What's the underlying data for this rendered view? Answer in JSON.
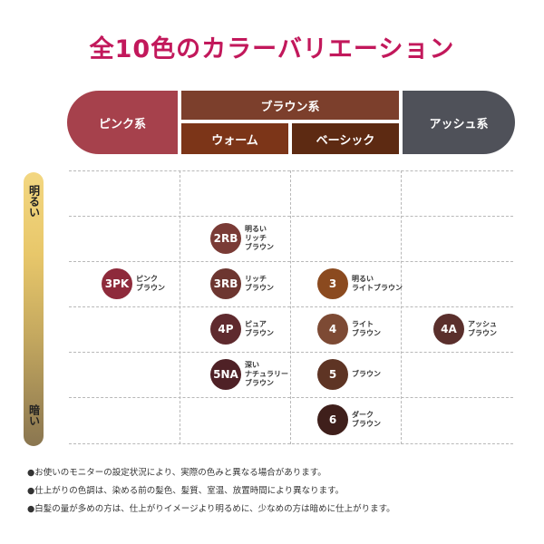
{
  "title": "全10色のカラーバリエーション",
  "headers": {
    "pink": "ピンク系",
    "brown": "ブラウン系",
    "warm": "ウォーム",
    "beige": "ベーシック",
    "ash": "アッシュ系"
  },
  "scale": {
    "light": "明るい",
    "dark": "暗い"
  },
  "colors": {
    "pink_header": "#a6414c",
    "brown_header": "#7c3f2c",
    "warm_header": "#7c3518",
    "basic_header": "#5d2a12",
    "ash_header": "#4f5159"
  },
  "shades": [
    {
      "code": "2RB",
      "lines": [
        "明るい",
        "リッチ",
        "ブラウン"
      ],
      "color": "#7a3b36",
      "column": "warm",
      "level": 2
    },
    {
      "code": "3PK",
      "lines": [
        "ピンク",
        "ブラウン"
      ],
      "color": "#8e2a3b",
      "column": "pink",
      "level": 3
    },
    {
      "code": "3RB",
      "lines": [
        "リッチ",
        "ブラウン"
      ],
      "color": "#6d3630",
      "column": "warm",
      "level": 3
    },
    {
      "code": "3",
      "lines": [
        "明るい",
        "ライトブラウン"
      ],
      "color": "#8b4a1f",
      "column": "basic",
      "level": 3
    },
    {
      "code": "4P",
      "lines": [
        "ピュア",
        "ブラウン"
      ],
      "color": "#5f2a2e",
      "column": "warm",
      "level": 4
    },
    {
      "code": "4",
      "lines": [
        "ライト",
        "ブラウン"
      ],
      "color": "#7d4a34",
      "column": "basic",
      "level": 4
    },
    {
      "code": "4A",
      "lines": [
        "アッシュ",
        "ブラウン"
      ],
      "color": "#5a2f2c",
      "column": "ash",
      "level": 4
    },
    {
      "code": "5NA",
      "lines": [
        "深い",
        "ナチュラリー",
        "ブラウン"
      ],
      "color": "#4f2126",
      "column": "warm",
      "level": 5
    },
    {
      "code": "5",
      "lines": [
        "ブラウン"
      ],
      "color": "#5e3424",
      "column": "basic",
      "level": 5
    },
    {
      "code": "6",
      "lines": [
        "ダーク",
        "ブラウン"
      ],
      "color": "#3f1f1b",
      "column": "basic",
      "level": 6
    }
  ],
  "notes": [
    "●お使いのモニターの設定状況により、実際の色みと異なる場合があります。",
    "●仕上がりの色調は、染める前の髪色、髪質、室温、放置時間により異なります。",
    "●白髪の量が多めの方は、仕上がりイメージより明るめに、少なめの方は暗めに仕上がります。"
  ]
}
